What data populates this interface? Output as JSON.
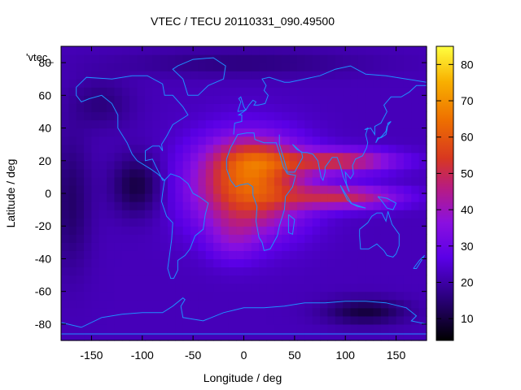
{
  "chart_data": {
    "type": "heatmap",
    "title": "VTEC / TECU 20110331_090.49500",
    "xlabel": "Longitude / deg",
    "ylabel": "Latitude / deg",
    "xlim": [
      -180,
      180
    ],
    "ylim": [
      -90,
      90
    ],
    "x_ticks": [
      -150,
      -100,
      -50,
      0,
      50,
      100,
      150
    ],
    "y_ticks": [
      -80,
      -60,
      -40,
      -20,
      0,
      20,
      40,
      60,
      80
    ],
    "legend_label": "'vtec_",
    "colorbar": {
      "range": [
        4,
        85
      ],
      "ticks": [
        10,
        20,
        30,
        40,
        50,
        60,
        70,
        80
      ],
      "stops": [
        {
          "v": 0.0,
          "color": "#000000"
        },
        {
          "v": 0.15,
          "color": "#2c0080"
        },
        {
          "v": 0.28,
          "color": "#5a00e6"
        },
        {
          "v": 0.4,
          "color": "#8a10e0"
        },
        {
          "v": 0.52,
          "color": "#b81c80"
        },
        {
          "v": 0.62,
          "color": "#d83820"
        },
        {
          "v": 0.75,
          "color": "#ee7000"
        },
        {
          "v": 0.88,
          "color": "#f8b000"
        },
        {
          "v": 1.0,
          "color": "#ffff40"
        }
      ]
    },
    "field": {
      "background": 22,
      "regions": [
        {
          "lon": 5,
          "lat": 5,
          "slon": 55,
          "slat": 28,
          "amp": 40
        },
        {
          "lon": 10,
          "lat": 22,
          "slon": 40,
          "slat": 12,
          "amp": 12
        },
        {
          "lon": -10,
          "lat": -28,
          "slon": 25,
          "slat": 14,
          "amp": 8
        },
        {
          "lon": 95,
          "lat": 20,
          "slon": 55,
          "slat": 7,
          "amp": 28
        },
        {
          "lon": 100,
          "lat": -2,
          "slon": 55,
          "slat": 7,
          "amp": 26
        },
        {
          "lon": -105,
          "lat": 5,
          "slon": 25,
          "slat": 18,
          "amp": -12
        },
        {
          "lon": -170,
          "lat": -5,
          "slon": 20,
          "slat": 40,
          "amp": -8
        },
        {
          "lon": 120,
          "lat": -72,
          "slon": 40,
          "slat": 8,
          "amp": -12
        },
        {
          "lon": -140,
          "lat": 55,
          "slon": 30,
          "slat": 15,
          "amp": -6
        },
        {
          "lon": 0,
          "lat": 80,
          "slon": 120,
          "slat": 8,
          "amp": -6
        }
      ]
    }
  }
}
